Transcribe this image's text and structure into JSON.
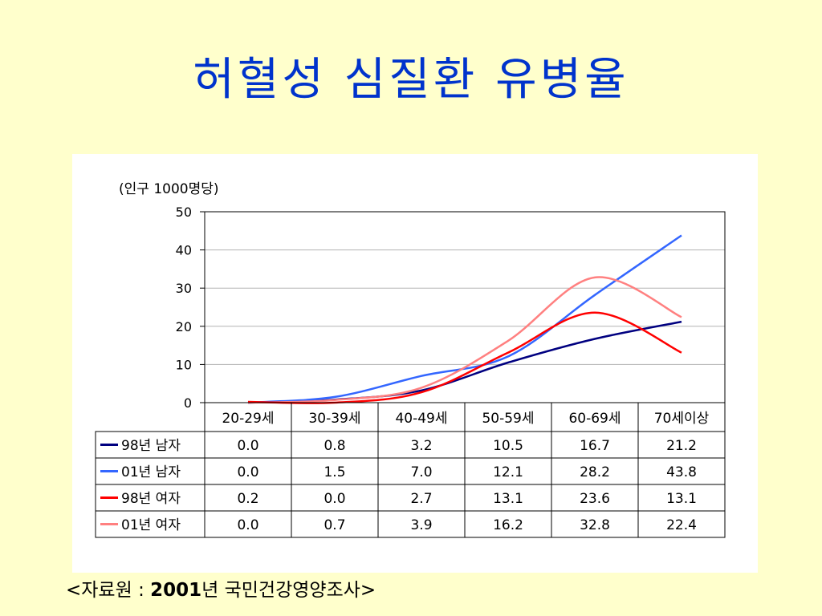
{
  "slide": {
    "title": "허혈성 심질환 유병율",
    "source_prefix": "<자료원 : ",
    "source_year": "2001",
    "source_suffix": "년 국민건강영양조사>"
  },
  "chart_data": {
    "type": "line",
    "unit_label": "(인구 1000명당)",
    "categories": [
      "20-29세",
      "30-39세",
      "40-49세",
      "50-59세",
      "60-69세",
      "70세이상"
    ],
    "ylim": [
      0,
      50
    ],
    "yticks": [
      0,
      10,
      20,
      30,
      40,
      50
    ],
    "grid": true,
    "legend": "data-table",
    "series": [
      {
        "name": "98년 남자",
        "color": "#000080",
        "values": [
          0.0,
          0.8,
          3.2,
          10.5,
          16.7,
          21.2
        ],
        "display": [
          "0.0",
          "0.8",
          "3.2",
          "10.5",
          "16.7",
          "21.2"
        ]
      },
      {
        "name": "01년 남자",
        "color": "#3366ff",
        "values": [
          0.0,
          1.5,
          7.0,
          12.1,
          28.2,
          43.8
        ],
        "display": [
          "0.0",
          "1.5",
          "7.0",
          "12.1",
          "28.2",
          "43.8"
        ]
      },
      {
        "name": "98년 여자",
        "color": "#ff0000",
        "values": [
          0.2,
          0.0,
          2.7,
          13.1,
          23.6,
          13.1
        ],
        "display": [
          "0.2",
          "0.0",
          "2.7",
          "13.1",
          "23.6",
          "13.1"
        ]
      },
      {
        "name": "01년 여자",
        "color": "#ff8080",
        "values": [
          0.0,
          0.7,
          3.9,
          16.2,
          32.8,
          22.4
        ],
        "display": [
          "0.0",
          "0.7",
          "3.9",
          "16.2",
          "32.8",
          "22.4"
        ]
      }
    ]
  }
}
